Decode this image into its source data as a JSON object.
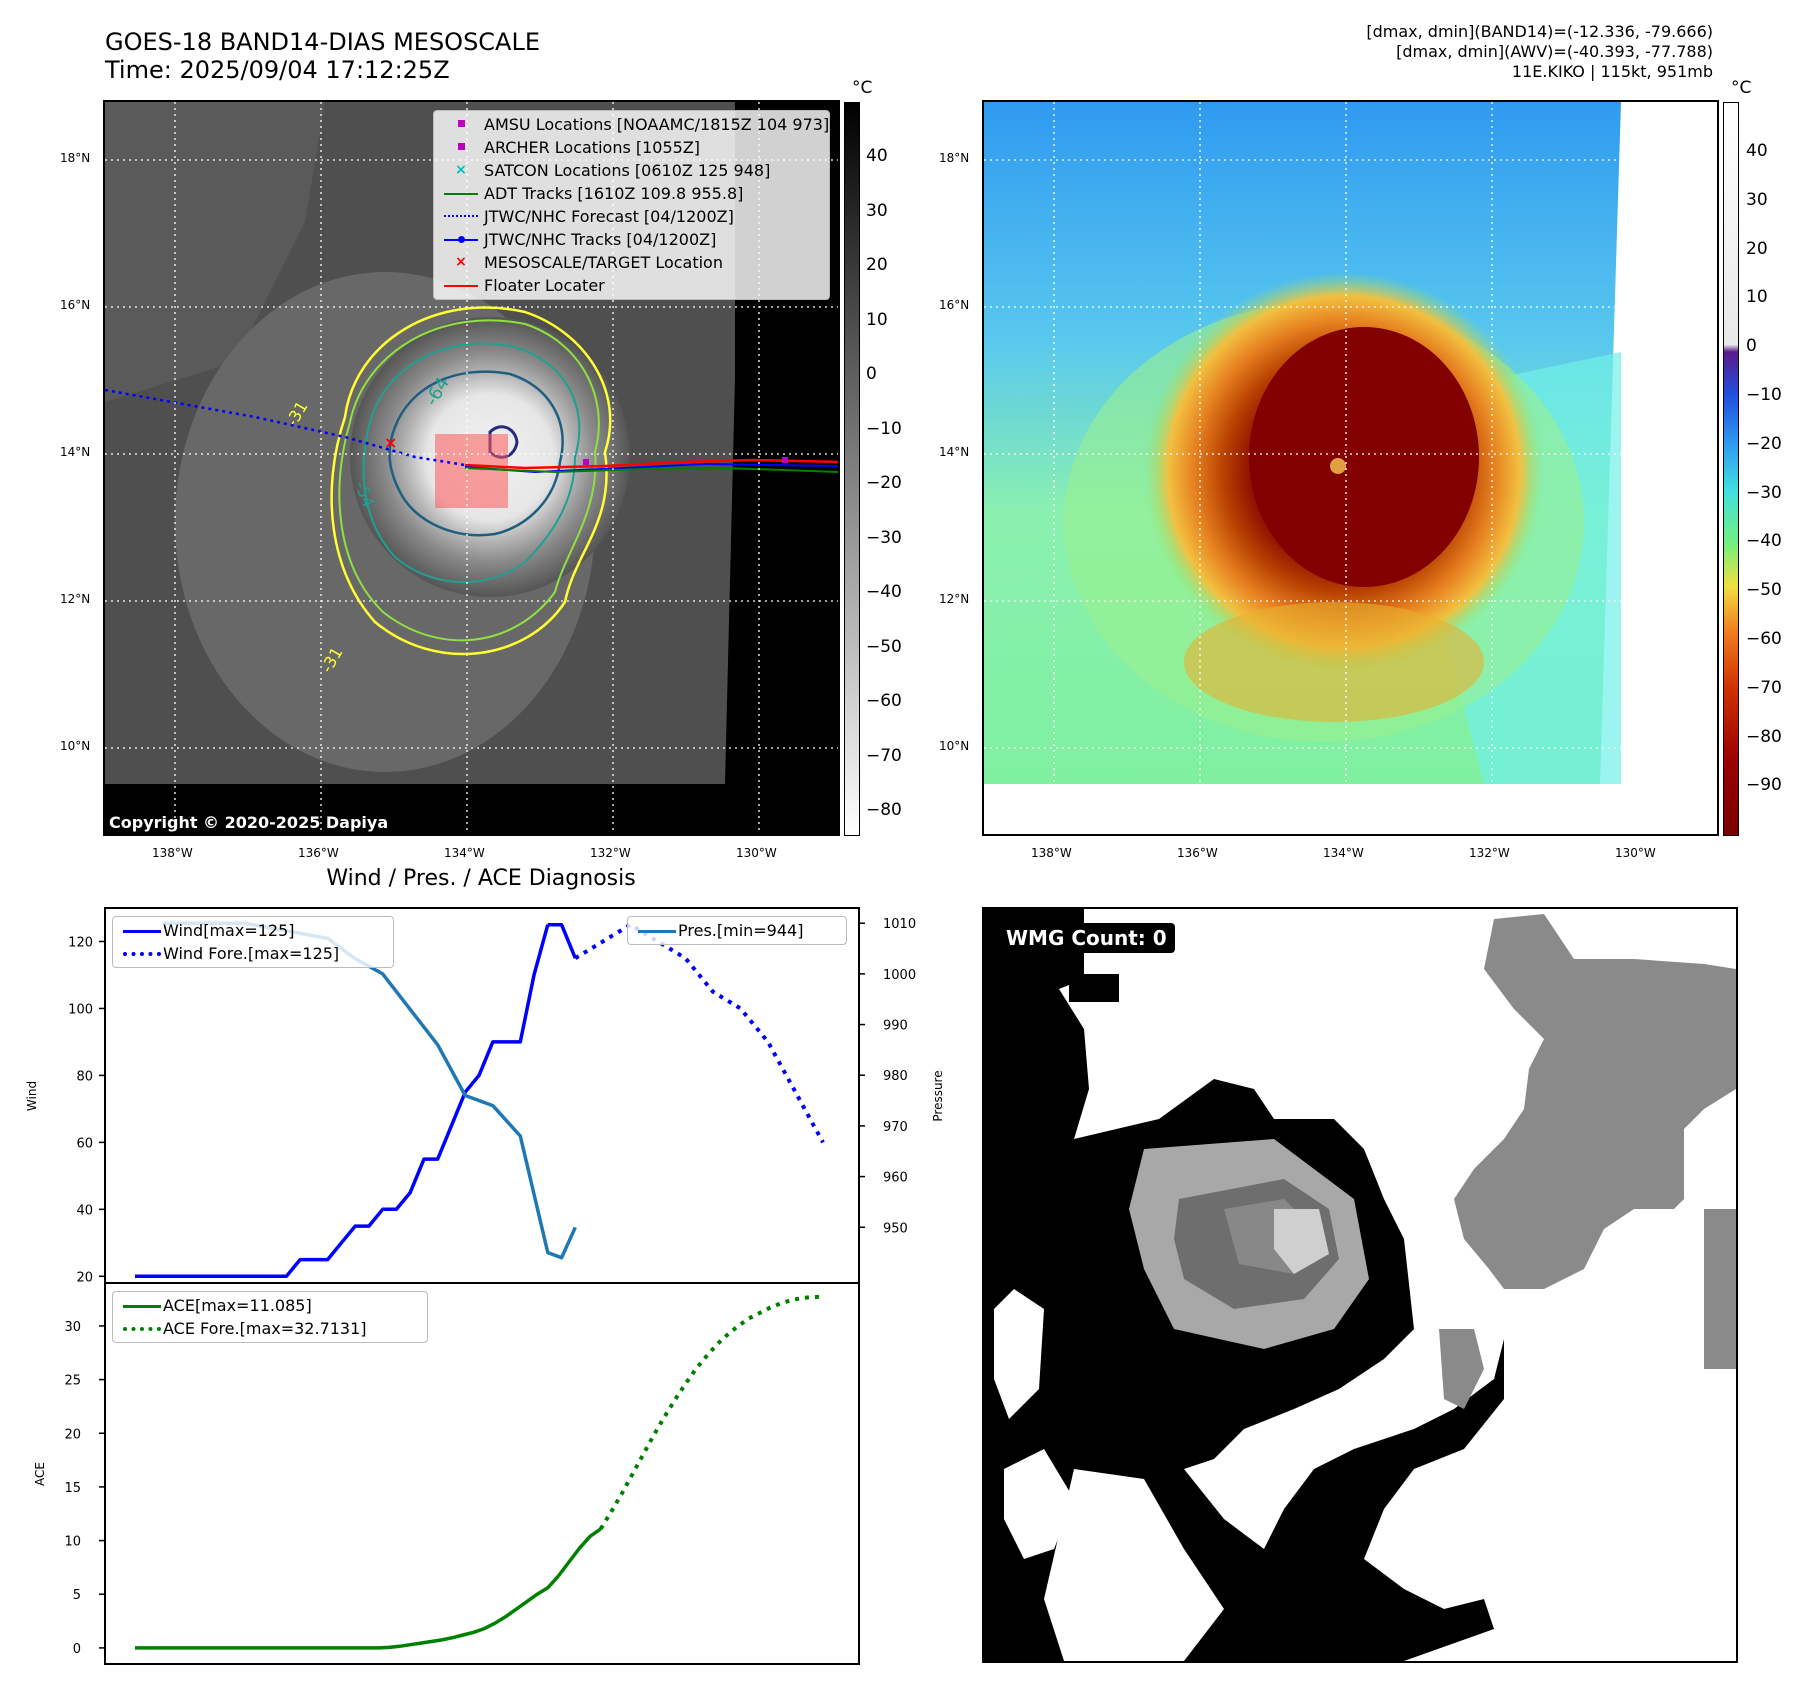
{
  "header": {
    "title_line1": "GOES-18 BAND14-DIAS MESOSCALE",
    "title_line2": "Time: 2025/09/04 17:12:25Z",
    "dmax_band14": "[dmax, dmin](BAND14)=(-12.336, -79.666)",
    "dmax_awv": "[dmax, dmin](AWV)=(-40.393, -77.788)",
    "storm_info": "11E.KIKO | 115kt, 951mb"
  },
  "map": {
    "lat_labels": [
      "18°N",
      "16°N",
      "14°N",
      "12°N",
      "10°N"
    ],
    "lon_labels": [
      "138°W",
      "136°W",
      "134°W",
      "132°W",
      "130°W"
    ],
    "copyright": "Copyright © 2020-2025 Dapiya",
    "contour_labels": [
      "-31",
      "-64",
      "-54",
      "-31"
    ],
    "legend": [
      {
        "label": "AMSU Locations [NOAAMC/1815Z 104 973]",
        "color": "#c000c0",
        "marker": "square"
      },
      {
        "label": "ARCHER Locations [1055Z]",
        "color": "#c000c0",
        "marker": "square"
      },
      {
        "label": "SATCON Locations [0610Z 125 948]",
        "color": "#00bfbf",
        "marker": "x"
      },
      {
        "label": "ADT Tracks [1610Z 109.8 955.8]",
        "color": "#008000",
        "marker": "line"
      },
      {
        "label": "JTWC/NHC Forecast [04/1200Z]",
        "color": "#0000ff",
        "marker": "dotted"
      },
      {
        "label": "JTWC/NHC Tracks [04/1200Z]",
        "color": "#0000ff",
        "marker": "line-dot"
      },
      {
        "label": "MESOSCALE/TARGET Location",
        "color": "#ff0000",
        "marker": "x"
      },
      {
        "label": "Floater Locater",
        "color": "#ff0000",
        "marker": "line"
      }
    ]
  },
  "colorbar_left": {
    "unit": "°C",
    "ticks": [
      "40",
      "30",
      "20",
      "10",
      "0",
      "−10",
      "−20",
      "−30",
      "−40",
      "−50",
      "−60",
      "−70",
      "−80"
    ]
  },
  "colorbar_right": {
    "unit": "°C",
    "ticks": [
      "40",
      "30",
      "20",
      "10",
      "0",
      "−10",
      "−20",
      "−30",
      "−40",
      "−50",
      "−60",
      "−70",
      "−80",
      "−90"
    ]
  },
  "wmg": {
    "label": "WMG Count: 0"
  },
  "chart_data": [
    {
      "type": "line",
      "title": "Wind / Pres. / ACE Diagnosis",
      "ylabel": "Wind",
      "y2label": "Pressure",
      "ylim": [
        18,
        130
      ],
      "y2lim": [
        939,
        1013
      ],
      "yticks": [
        "20",
        "40",
        "60",
        "80",
        "100",
        "120"
      ],
      "y2ticks": [
        "950",
        "960",
        "970",
        "980",
        "990",
        "1000",
        "1010"
      ],
      "legend_left": [
        "Wind[max=125]",
        "Wind Fore.[max=125]"
      ],
      "legend_right": [
        "Pres.[min=944]"
      ],
      "series": [
        {
          "name": "Wind[max=125]",
          "axis": "left",
          "color": "#0000ff",
          "style": "solid",
          "x": [
            0,
            1,
            2,
            3,
            4,
            5,
            6,
            7,
            8,
            9,
            10,
            11,
            12,
            13,
            14,
            15,
            16,
            17,
            18,
            19,
            20,
            21,
            22,
            23,
            24,
            25,
            26,
            27,
            28,
            29,
            30
          ],
          "values": [
            20,
            20,
            20,
            20,
            20,
            20,
            20,
            20,
            20,
            20,
            20,
            20,
            25,
            25,
            25,
            30,
            35,
            35,
            40,
            40,
            45,
            55,
            55,
            65,
            75,
            80,
            90,
            90,
            90,
            110,
            125
          ]
        },
        {
          "name": "Wind (to fore.)",
          "axis": "left",
          "color": "#0000ff",
          "style": "solid",
          "x": [
            30,
            31,
            32
          ],
          "values": [
            125,
            125,
            115
          ]
        },
        {
          "name": "Wind Fore.[max=125]",
          "axis": "left",
          "color": "#0000ff",
          "style": "dotted",
          "x": [
            32,
            34,
            36,
            38,
            40,
            42,
            44,
            46,
            48,
            50
          ],
          "values": [
            115,
            120,
            125,
            120,
            115,
            105,
            100,
            90,
            75,
            60
          ]
        },
        {
          "name": "Pres.[min=944]",
          "axis": "right",
          "color": "#1f77b4",
          "style": "solid",
          "x": [
            2,
            4,
            6,
            8,
            10,
            12,
            14,
            16,
            18,
            20,
            22,
            24,
            26,
            28,
            30,
            31,
            32
          ],
          "values": [
            1010,
            1010,
            1010,
            1010,
            1009,
            1008,
            1007,
            1003,
            1000,
            993,
            986,
            976,
            974,
            968,
            945,
            944,
            950
          ]
        }
      ]
    },
    {
      "type": "line",
      "ylabel": "ACE",
      "ylim": [
        -1.5,
        34
      ],
      "yticks": [
        "0",
        "5",
        "10",
        "15",
        "20",
        "25",
        "30"
      ],
      "legend": [
        "ACE[max=11.085]",
        "ACE Fore.[max=32.7131]"
      ],
      "series": [
        {
          "name": "ACE[max=11.085]",
          "color": "#008000",
          "style": "solid",
          "x": [
            0,
            16,
            18,
            20,
            22,
            24,
            26,
            28,
            30,
            32,
            34,
            36,
            38,
            40,
            42,
            44,
            46,
            48,
            50,
            52,
            54,
            56,
            58,
            60,
            62,
            64,
            66,
            68,
            70,
            72,
            74,
            76,
            78,
            80
          ],
          "values": [
            0,
            0,
            0,
            0,
            0,
            0,
            0,
            0,
            0,
            0,
            0,
            0,
            0,
            0,
            0,
            0,
            0,
            0.05,
            0.15,
            0.3,
            0.45,
            0.6,
            0.75,
            0.95,
            1.2,
            1.45,
            1.8,
            2.3,
            2.9,
            3.6,
            4.3,
            5.0,
            5.6,
            6.7
          ]
        },
        {
          "name": "ACE (cont.)",
          "color": "#008000",
          "style": "solid",
          "x": [
            80,
            82,
            84,
            86,
            88
          ],
          "values": [
            6.7,
            8.0,
            9.3,
            10.4,
            11.085
          ]
        },
        {
          "name": "ACE Fore.[max=32.7131]",
          "color": "#008000",
          "style": "dotted",
          "x": [
            88,
            90,
            92,
            94,
            96,
            98,
            100,
            102,
            104,
            106,
            108,
            110,
            112,
            114,
            116,
            118,
            120,
            122,
            124,
            126,
            128,
            130
          ],
          "values": [
            11.085,
            12.7,
            14.4,
            16.2,
            18.0,
            19.8,
            21.5,
            23.1,
            24.6,
            26.0,
            27.2,
            28.3,
            29.2,
            30.0,
            30.7,
            31.2,
            31.7,
            32.1,
            32.4,
            32.6,
            32.7,
            32.7131
          ]
        }
      ]
    }
  ]
}
